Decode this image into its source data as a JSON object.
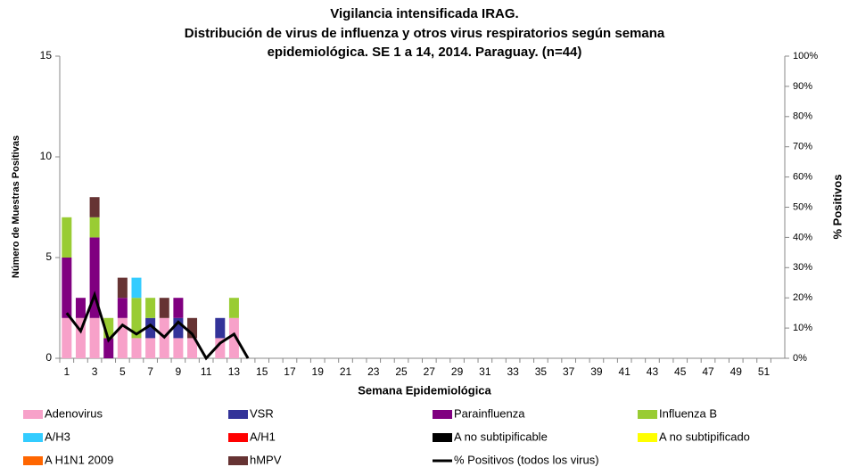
{
  "chart_data": {
    "type": "bar",
    "stacked": true,
    "title": [
      "Vigilancia intensificada IRAG.",
      "Distribución de virus de influenza y otros virus respiratorios según semana",
      "epidemiológica. SE 1 a 14, 2014. Paraguay. (n=44)"
    ],
    "x_label": "Semana Epidemiológica",
    "y_label": "Número de Muestras Positivas",
    "y2_label": "% Positivos",
    "categories": [
      "1",
      null,
      "3",
      null,
      "5",
      null,
      "7",
      null,
      "9",
      null,
      "11",
      null,
      "13",
      null,
      "15",
      null,
      "17",
      null,
      "19",
      null,
      "21",
      null,
      "23",
      null,
      "25",
      null,
      "27",
      null,
      "29",
      null,
      "31",
      null,
      "33",
      null,
      "35",
      null,
      "37",
      null,
      "39",
      null,
      "41",
      null,
      "43",
      null,
      "45",
      null,
      "47",
      null,
      "49",
      null,
      "51",
      null
    ],
    "ylim": [
      0,
      15
    ],
    "yticks": [
      0,
      5,
      10,
      15
    ],
    "y2lim": [
      0,
      100
    ],
    "y2ticks": [
      {
        "value": 0,
        "label": "0%"
      },
      {
        "value": 10,
        "label": "10%"
      },
      {
        "value": 20,
        "label": "20%"
      },
      {
        "value": 30,
        "label": "30%"
      },
      {
        "value": 40,
        "label": "40%"
      },
      {
        "value": 50,
        "label": "50%"
      },
      {
        "value": 60,
        "label": "60%"
      },
      {
        "value": 70,
        "label": "70%"
      },
      {
        "value": 80,
        "label": "80%"
      },
      {
        "value": 90,
        "label": "90%"
      },
      {
        "value": 100,
        "label": "100%"
      }
    ],
    "grid": false,
    "series": [
      {
        "name": "Adenovirus",
        "color": "#f7a1c9",
        "values": [
          2,
          2,
          2,
          0,
          2,
          1,
          1,
          2,
          1,
          1,
          0,
          1,
          2,
          0,
          null,
          null,
          null,
          null,
          null,
          null,
          null,
          null,
          null,
          null,
          null,
          null,
          null,
          null,
          null,
          null,
          null,
          null,
          null,
          null,
          null,
          null,
          null,
          null,
          null,
          null,
          null,
          null,
          null,
          null,
          null,
          null,
          null,
          null,
          null,
          null,
          null,
          null
        ]
      },
      {
        "name": "VSR",
        "color": "#333399",
        "values": [
          0,
          0,
          0,
          0,
          0,
          0,
          1,
          0,
          1,
          0,
          0,
          1,
          0,
          0,
          null,
          null,
          null,
          null,
          null,
          null,
          null,
          null,
          null,
          null,
          null,
          null,
          null,
          null,
          null,
          null,
          null,
          null,
          null,
          null,
          null,
          null,
          null,
          null,
          null,
          null,
          null,
          null,
          null,
          null,
          null,
          null,
          null,
          null,
          null,
          null,
          null,
          null
        ]
      },
      {
        "name": "Parainfluenza",
        "color": "#800080",
        "values": [
          3,
          1,
          4,
          1,
          1,
          0,
          0,
          0,
          1,
          0,
          0,
          0,
          0,
          0,
          null,
          null,
          null,
          null,
          null,
          null,
          null,
          null,
          null,
          null,
          null,
          null,
          null,
          null,
          null,
          null,
          null,
          null,
          null,
          null,
          null,
          null,
          null,
          null,
          null,
          null,
          null,
          null,
          null,
          null,
          null,
          null,
          null,
          null,
          null,
          null,
          null,
          null
        ]
      },
      {
        "name": "Influenza  B",
        "color": "#99cc33",
        "values": [
          2,
          0,
          1,
          1,
          0,
          2,
          1,
          0,
          0,
          0,
          0,
          0,
          1,
          0,
          null,
          null,
          null,
          null,
          null,
          null,
          null,
          null,
          null,
          null,
          null,
          null,
          null,
          null,
          null,
          null,
          null,
          null,
          null,
          null,
          null,
          null,
          null,
          null,
          null,
          null,
          null,
          null,
          null,
          null,
          null,
          null,
          null,
          null,
          null,
          null,
          null,
          null
        ]
      },
      {
        "name": "A/H3",
        "color": "#33ccff",
        "values": [
          0,
          0,
          0,
          0,
          0,
          1,
          0,
          0,
          0,
          0,
          0,
          0,
          0,
          0,
          null,
          null,
          null,
          null,
          null,
          null,
          null,
          null,
          null,
          null,
          null,
          null,
          null,
          null,
          null,
          null,
          null,
          null,
          null,
          null,
          null,
          null,
          null,
          null,
          null,
          null,
          null,
          null,
          null,
          null,
          null,
          null,
          null,
          null,
          null,
          null,
          null,
          null
        ]
      },
      {
        "name": "A/H1",
        "color": "#ff0000",
        "values": [
          0,
          0,
          0,
          0,
          0,
          0,
          0,
          0,
          0,
          0,
          0,
          0,
          0,
          0,
          null,
          null,
          null,
          null,
          null,
          null,
          null,
          null,
          null,
          null,
          null,
          null,
          null,
          null,
          null,
          null,
          null,
          null,
          null,
          null,
          null,
          null,
          null,
          null,
          null,
          null,
          null,
          null,
          null,
          null,
          null,
          null,
          null,
          null,
          null,
          null,
          null,
          null
        ]
      },
      {
        "name": "A no subtipificable",
        "color": "#000000",
        "values": [
          0,
          0,
          0,
          0,
          0,
          0,
          0,
          0,
          0,
          0,
          0,
          0,
          0,
          0,
          null,
          null,
          null,
          null,
          null,
          null,
          null,
          null,
          null,
          null,
          null,
          null,
          null,
          null,
          null,
          null,
          null,
          null,
          null,
          null,
          null,
          null,
          null,
          null,
          null,
          null,
          null,
          null,
          null,
          null,
          null,
          null,
          null,
          null,
          null,
          null,
          null,
          null
        ]
      },
      {
        "name": "A no subtipificado",
        "color": "#ffff00",
        "values": [
          0,
          0,
          0,
          0,
          0,
          0,
          0,
          0,
          0,
          0,
          0,
          0,
          0,
          0,
          null,
          null,
          null,
          null,
          null,
          null,
          null,
          null,
          null,
          null,
          null,
          null,
          null,
          null,
          null,
          null,
          null,
          null,
          null,
          null,
          null,
          null,
          null,
          null,
          null,
          null,
          null,
          null,
          null,
          null,
          null,
          null,
          null,
          null,
          null,
          null,
          null,
          null
        ]
      },
      {
        "name": "A H1N1 2009",
        "color": "#ff6600",
        "values": [
          0,
          0,
          0,
          0,
          0,
          0,
          0,
          0,
          0,
          0,
          0,
          0,
          0,
          0,
          null,
          null,
          null,
          null,
          null,
          null,
          null,
          null,
          null,
          null,
          null,
          null,
          null,
          null,
          null,
          null,
          null,
          null,
          null,
          null,
          null,
          null,
          null,
          null,
          null,
          null,
          null,
          null,
          null,
          null,
          null,
          null,
          null,
          null,
          null,
          null,
          null,
          null
        ]
      },
      {
        "name": "hMPV",
        "color": "#663333",
        "values": [
          0,
          0,
          1,
          0,
          1,
          0,
          0,
          1,
          0,
          1,
          0,
          0,
          0,
          0,
          null,
          null,
          null,
          null,
          null,
          null,
          null,
          null,
          null,
          null,
          null,
          null,
          null,
          null,
          null,
          null,
          null,
          null,
          null,
          null,
          null,
          null,
          null,
          null,
          null,
          null,
          null,
          null,
          null,
          null,
          null,
          null,
          null,
          null,
          null,
          null,
          null,
          null
        ]
      },
      {
        "name": "% Positivos (todos los virus)",
        "type": "line",
        "axis": "y2",
        "color": "#000000",
        "values": [
          15,
          9,
          21,
          6,
          11,
          8,
          11,
          7,
          12,
          8,
          0,
          5,
          8,
          0,
          null,
          null,
          null,
          null,
          null,
          null,
          null,
          null,
          null,
          null,
          null,
          null,
          null,
          null,
          null,
          null,
          null,
          null,
          null,
          null,
          null,
          null,
          null,
          null,
          null,
          null,
          null,
          null,
          null,
          null,
          null,
          null,
          null,
          null,
          null,
          null,
          null,
          null
        ]
      }
    ]
  }
}
